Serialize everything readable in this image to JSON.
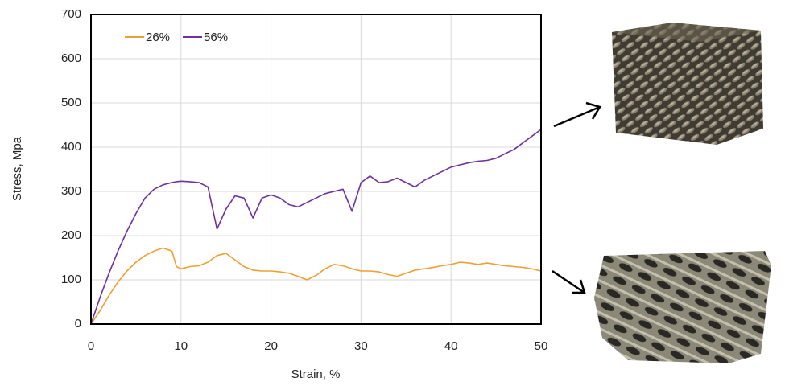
{
  "chart_data": {
    "type": "line",
    "xlabel": "Strain, %",
    "ylabel": "Stress, Mpa",
    "x": [
      0,
      1,
      2,
      3,
      4,
      5,
      6,
      7,
      8,
      9,
      9.5,
      10,
      11,
      12,
      13,
      14,
      15,
      16,
      17,
      18,
      19,
      20,
      21,
      22,
      23,
      24,
      25,
      26,
      27,
      28,
      29,
      30,
      31,
      32,
      33,
      34,
      35,
      36,
      37,
      38,
      39,
      40,
      41,
      42,
      43,
      44,
      45,
      46,
      47,
      48,
      49,
      50
    ],
    "series": [
      {
        "name": "26%",
        "color": "#f0a030",
        "values": [
          0,
          30,
          65,
          95,
          120,
          140,
          155,
          165,
          172,
          165,
          130,
          125,
          130,
          132,
          140,
          155,
          160,
          145,
          130,
          122,
          120,
          120,
          118,
          115,
          108,
          100,
          110,
          125,
          135,
          132,
          125,
          120,
          120,
          118,
          112,
          108,
          115,
          122,
          125,
          128,
          132,
          135,
          140,
          138,
          135,
          138,
          135,
          132,
          130,
          128,
          125,
          120
        ]
      },
      {
        "name": "56%",
        "color": "#7030a0",
        "values": [
          0,
          60,
          115,
          165,
          210,
          250,
          285,
          305,
          315,
          320,
          322,
          323,
          322,
          320,
          310,
          215,
          260,
          290,
          285,
          240,
          285,
          292,
          285,
          270,
          265,
          275,
          285,
          295,
          300,
          305,
          255,
          320,
          335,
          320,
          322,
          330,
          320,
          310,
          325,
          335,
          345,
          355,
          360,
          365,
          368,
          370,
          375,
          385,
          395,
          410,
          425,
          440
        ]
      }
    ],
    "xlim": [
      0,
      50
    ],
    "xticks": [
      0,
      10,
      20,
      30,
      40,
      50
    ],
    "ylim": [
      0,
      700
    ],
    "yticks": [
      0,
      100,
      200,
      300,
      400,
      500,
      600,
      700
    ],
    "grid": true,
    "legend": "top-left"
  }
}
